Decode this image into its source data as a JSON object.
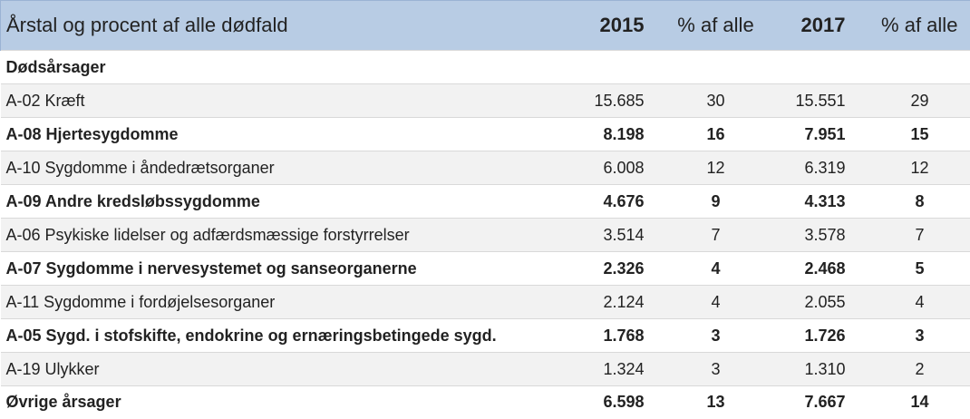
{
  "header": {
    "title": "Årstal og procent af alle dødfald",
    "columns": [
      "2015",
      "% af alle",
      "2017",
      "% af alle"
    ]
  },
  "section": "Dødsårsager",
  "table": {
    "rows": [
      [
        "A-02 Kræft",
        "15.685",
        "30",
        "15.551",
        "29"
      ],
      [
        "A-08 Hjertesygdomme",
        "8.198",
        "16",
        "7.951",
        "15"
      ],
      [
        "A-10 Sygdomme i åndedrætsorganer",
        "6.008",
        "12",
        "6.319",
        "12"
      ],
      [
        "A-09 Andre kredsløbssygdomme",
        "4.676",
        "9",
        "4.313",
        "8"
      ],
      [
        "A-06 Psykiske lidelser og adfærdsmæssige forstyrrelser",
        "3.514",
        "7",
        "3.578",
        "7"
      ],
      [
        "A-07 Sygdomme i nervesystemet og sanseorganerne",
        "2.326",
        "4",
        "2.468",
        "5"
      ],
      [
        "A-11 Sygdomme i fordøjelsesorganer",
        "2.124",
        "4",
        "2.055",
        "4"
      ],
      [
        "A-05 Sygd. i stofskifte, endokrine og ernæringsbetingede sygd.",
        "1.768",
        "3",
        "1.726",
        "3"
      ],
      [
        "A-19 Ulykker",
        "1.324",
        "3",
        "1.310",
        "2"
      ],
      [
        "Øvrige årsager",
        "6.598",
        "13",
        "7.667",
        "14"
      ]
    ]
  }
}
